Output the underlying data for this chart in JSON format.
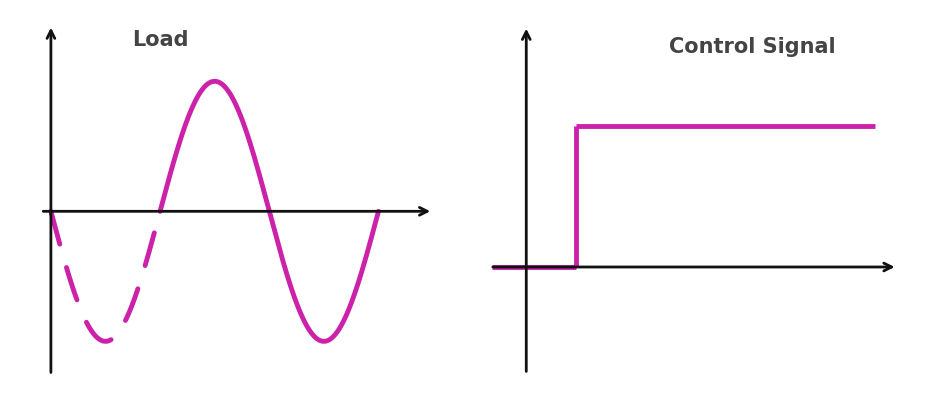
{
  "background_color": "#ffffff",
  "line_color": "#cc22aa",
  "axis_color": "#111111",
  "load_title": "Load",
  "control_title": "Control Signal",
  "title_fontsize": 15,
  "title_fontweight": "bold",
  "title_color": "#444444",
  "line_width": 3.5,
  "axis_linewidth": 2.0,
  "arrow_mutation_scale": 14
}
